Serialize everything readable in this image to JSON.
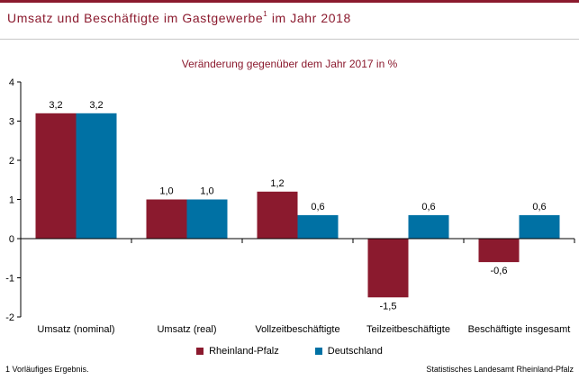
{
  "header": {
    "title": "Umsatz und Beschäftigte im Gastgewerbe",
    "title_sup": "1",
    "title_suffix": " im Jahr 2018"
  },
  "chart_data": {
    "type": "bar",
    "subtitle": "Veränderung gegenüber dem Jahr 2017 in %",
    "categories": [
      "Umsatz (nominal)",
      "Umsatz (real)",
      "Vollzeitbeschäftigte",
      "Teilzeitbeschäftigte",
      "Beschäftigte insgesamt"
    ],
    "series": [
      {
        "name": "Rheinland-Pfalz",
        "color": "#8b1a2e",
        "values": [
          3.2,
          1.0,
          1.2,
          -1.5,
          -0.6
        ],
        "labels": [
          "3,2",
          "1,0",
          "1,2",
          "-1,5",
          "-0,6"
        ]
      },
      {
        "name": "Deutschland",
        "color": "#0071a4",
        "values": [
          3.2,
          1.0,
          0.6,
          0.6,
          0.6
        ],
        "labels": [
          "3,2",
          "1,0",
          "0,6",
          "0,6",
          "0,6"
        ]
      }
    ],
    "ylim": [
      -2,
      4
    ],
    "yticks": [
      -2,
      -1,
      0,
      1,
      2,
      3,
      4
    ],
    "ytick_labels": [
      "-2",
      "-1",
      "0",
      "1",
      "2",
      "3",
      "4"
    ],
    "grid": false,
    "legend_position": "bottom"
  },
  "footer": {
    "footnote": "1 Vorläufiges Ergebnis.",
    "source": "Statistisches Landesamt Rheinland-Pfalz"
  }
}
